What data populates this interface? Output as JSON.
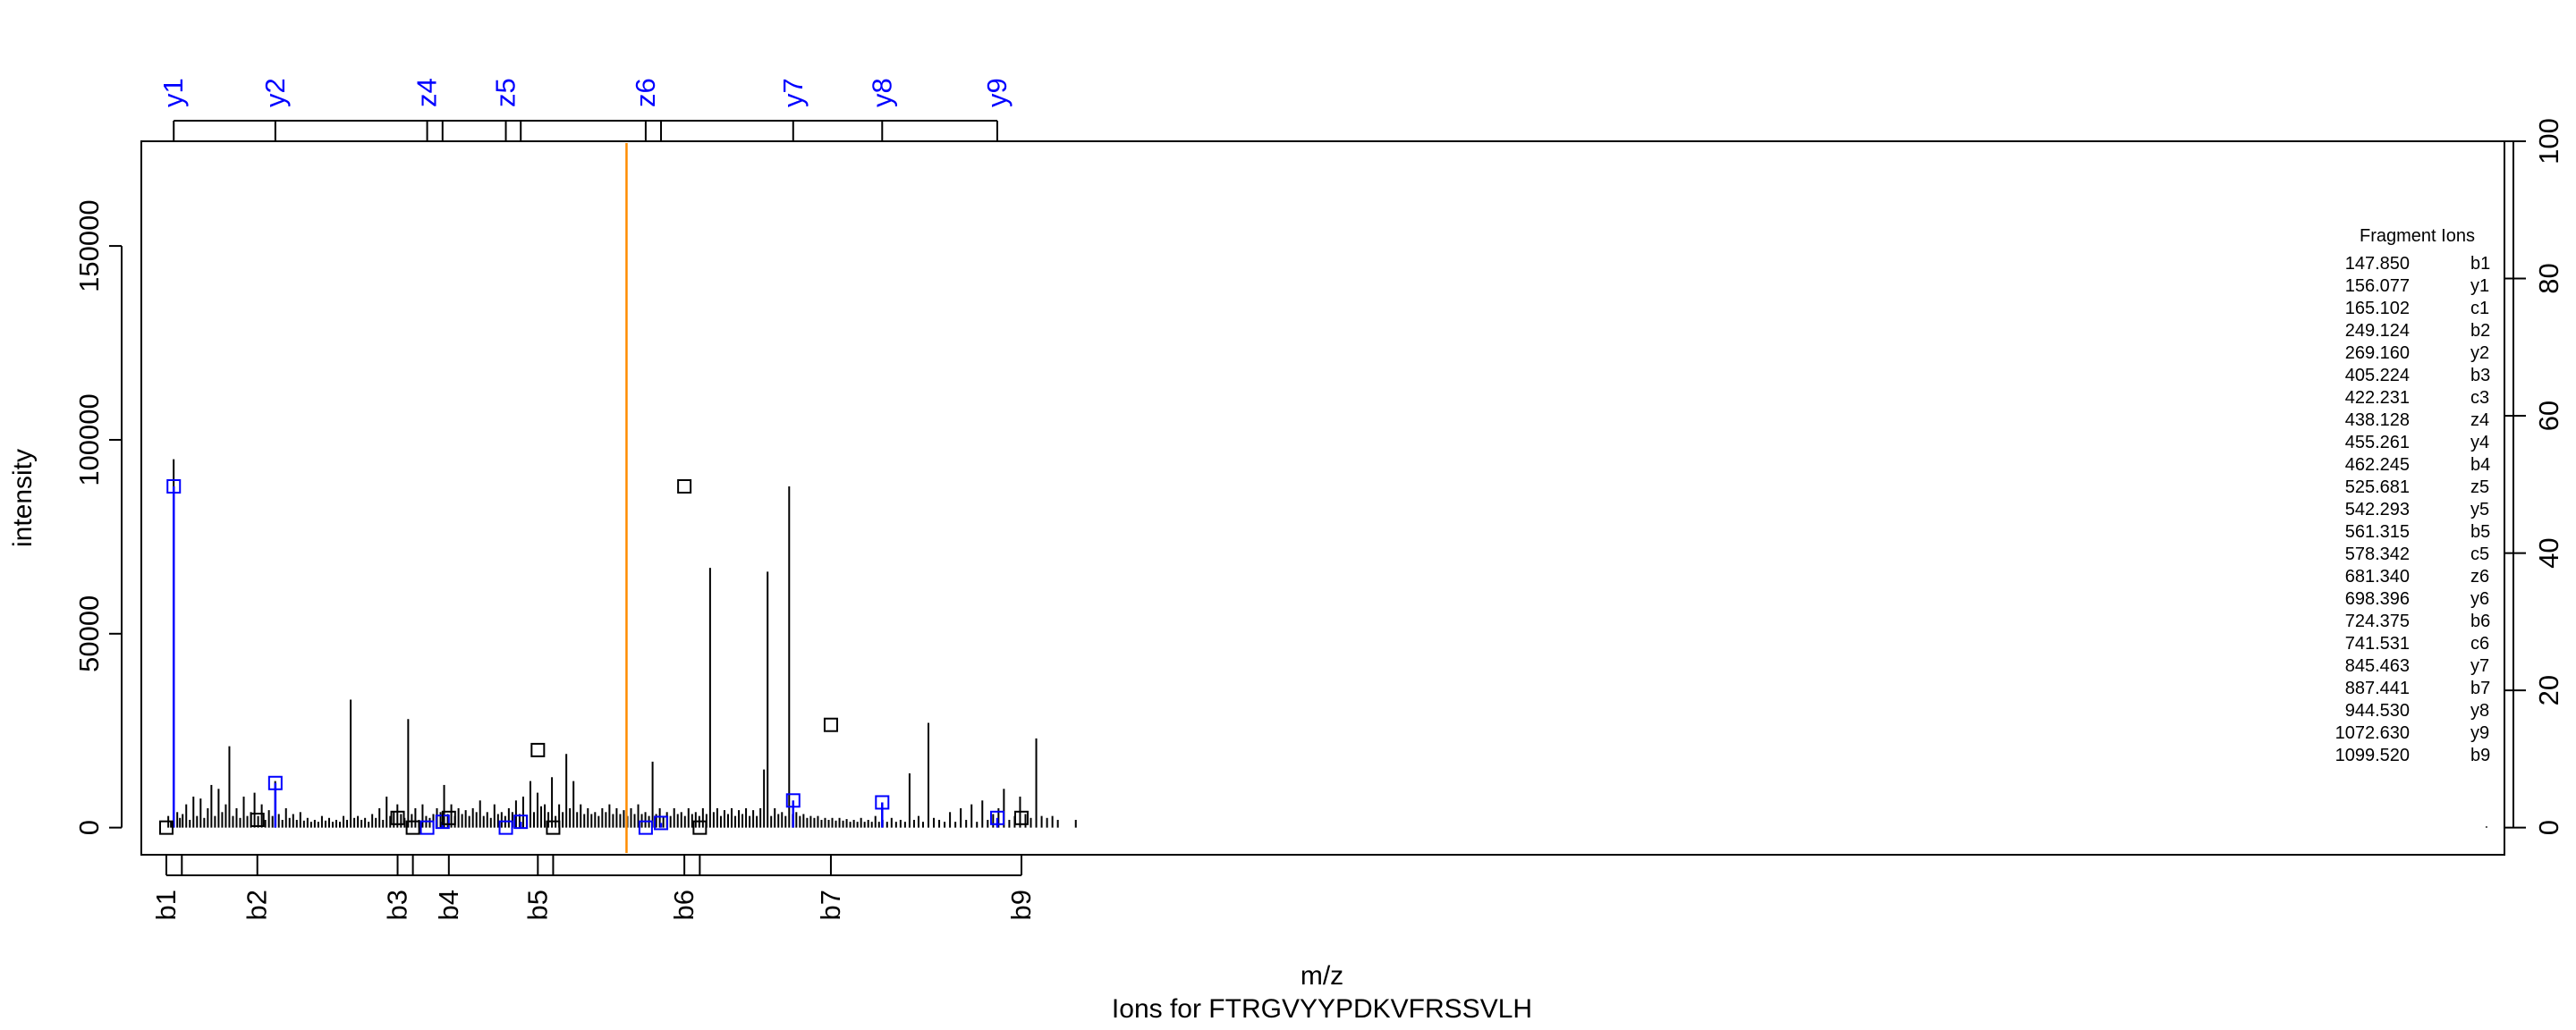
{
  "chart_data": {
    "type": "spectrum",
    "subtitle": "Ions for FTRGVYYPDKVFRSSVLH",
    "xlabel": "m/z",
    "ylabel": "intensity",
    "xlim": [
      120,
      2750
    ],
    "ylim": [
      -7000,
      177000
    ],
    "y_ticks": [
      0,
      50000,
      100000,
      150000
    ],
    "y_right_ticks": [
      0,
      20,
      40,
      60,
      80,
      100
    ],
    "y_right_scale_max": 177000,
    "highlight_line_mz": 660,
    "highlight_color": "#ff8c00",
    "ion_color_matched": "#0000ff",
    "ion_color_other": "#000000",
    "top_ion_ticks": [
      {
        "label": "y1",
        "mz": 156.077,
        "labeled": true
      },
      {
        "label": "y2",
        "mz": 269.16,
        "labeled": true
      },
      {
        "label": "z4",
        "mz": 438.128,
        "labeled": true
      },
      {
        "label": "",
        "mz": 455.261,
        "labeled": false
      },
      {
        "label": "z5",
        "mz": 525.681,
        "labeled": true
      },
      {
        "label": "",
        "mz": 542.293,
        "labeled": false
      },
      {
        "label": "z6",
        "mz": 681.34,
        "labeled": true
      },
      {
        "label": "",
        "mz": 698.396,
        "labeled": false
      },
      {
        "label": "y7",
        "mz": 845.463,
        "labeled": true
      },
      {
        "label": "y8",
        "mz": 944.53,
        "labeled": true
      },
      {
        "label": "y9",
        "mz": 1072.63,
        "labeled": true
      }
    ],
    "bottom_ion_ticks": [
      {
        "label": "b1",
        "mz": 147.85,
        "labeled": true
      },
      {
        "label": "",
        "mz": 165.102,
        "labeled": false
      },
      {
        "label": "b2",
        "mz": 249.124,
        "labeled": true
      },
      {
        "label": "b3",
        "mz": 405.224,
        "labeled": true
      },
      {
        "label": "",
        "mz": 422.231,
        "labeled": false
      },
      {
        "label": "b4",
        "mz": 462.245,
        "labeled": true
      },
      {
        "label": "b5",
        "mz": 561.315,
        "labeled": true
      },
      {
        "label": "",
        "mz": 578.342,
        "labeled": false
      },
      {
        "label": "b6",
        "mz": 724.375,
        "labeled": true
      },
      {
        "label": "",
        "mz": 741.531,
        "labeled": false
      },
      {
        "label": "b7",
        "mz": 887.441,
        "labeled": true
      },
      {
        "label": "b9",
        "mz": 1099.52,
        "labeled": true
      }
    ],
    "peaks": [
      [
        150,
        3000
      ],
      [
        153,
        1500
      ],
      [
        156,
        95000
      ],
      [
        160,
        4000
      ],
      [
        163,
        2500
      ],
      [
        166,
        3500
      ],
      [
        170,
        6000
      ],
      [
        174,
        2000
      ],
      [
        178,
        8000
      ],
      [
        182,
        3000
      ],
      [
        186,
        7500
      ],
      [
        190,
        2500
      ],
      [
        194,
        5000
      ],
      [
        198,
        11000
      ],
      [
        202,
        3000
      ],
      [
        206,
        10000
      ],
      [
        210,
        4000
      ],
      [
        214,
        6000
      ],
      [
        218,
        21000
      ],
      [
        222,
        3000
      ],
      [
        226,
        5000
      ],
      [
        230,
        2500
      ],
      [
        234,
        8000
      ],
      [
        238,
        3000
      ],
      [
        242,
        4000
      ],
      [
        246,
        9000
      ],
      [
        250,
        3000
      ],
      [
        254,
        6000
      ],
      [
        258,
        2000
      ],
      [
        262,
        4500
      ],
      [
        266,
        3000
      ],
      [
        269,
        12000
      ],
      [
        273,
        3500
      ],
      [
        277,
        2000
      ],
      [
        281,
        5000
      ],
      [
        285,
        2500
      ],
      [
        289,
        3500
      ],
      [
        293,
        2000
      ],
      [
        297,
        4000
      ],
      [
        301,
        1800
      ],
      [
        305,
        2500
      ],
      [
        309,
        1500
      ],
      [
        313,
        2000
      ],
      [
        317,
        1500
      ],
      [
        321,
        3000
      ],
      [
        325,
        1800
      ],
      [
        329,
        2500
      ],
      [
        333,
        1500
      ],
      [
        337,
        2000
      ],
      [
        341,
        1500
      ],
      [
        345,
        3000
      ],
      [
        349,
        2000
      ],
      [
        353,
        33000
      ],
      [
        357,
        2500
      ],
      [
        361,
        3000
      ],
      [
        365,
        2000
      ],
      [
        369,
        2500
      ],
      [
        373,
        1500
      ],
      [
        377,
        3500
      ],
      [
        381,
        2500
      ],
      [
        385,
        5000
      ],
      [
        389,
        2000
      ],
      [
        393,
        8000
      ],
      [
        397,
        3000
      ],
      [
        401,
        4000
      ],
      [
        405,
        6000
      ],
      [
        409,
        3500
      ],
      [
        413,
        2500
      ],
      [
        417,
        28000
      ],
      [
        421,
        3500
      ],
      [
        425,
        5000
      ],
      [
        429,
        2000
      ],
      [
        433,
        6000
      ],
      [
        437,
        3000
      ],
      [
        441,
        2500
      ],
      [
        445,
        3500
      ],
      [
        449,
        5000
      ],
      [
        453,
        4000
      ],
      [
        457,
        11000
      ],
      [
        461,
        3500
      ],
      [
        465,
        6000
      ],
      [
        469,
        3000
      ],
      [
        473,
        5000
      ],
      [
        477,
        3500
      ],
      [
        481,
        4500
      ],
      [
        485,
        3000
      ],
      [
        489,
        5000
      ],
      [
        493,
        4000
      ],
      [
        497,
        7000
      ],
      [
        501,
        3000
      ],
      [
        505,
        4000
      ],
      [
        509,
        2500
      ],
      [
        513,
        6000
      ],
      [
        517,
        3500
      ],
      [
        521,
        4000
      ],
      [
        525,
        3000
      ],
      [
        529,
        5000
      ],
      [
        533,
        4000
      ],
      [
        537,
        7000
      ],
      [
        541,
        3500
      ],
      [
        545,
        8000
      ],
      [
        549,
        3000
      ],
      [
        553,
        12000
      ],
      [
        557,
        4000
      ],
      [
        561,
        9000
      ],
      [
        565,
        5500
      ],
      [
        569,
        6000
      ],
      [
        573,
        4000
      ],
      [
        577,
        13000
      ],
      [
        581,
        3000
      ],
      [
        585,
        6000
      ],
      [
        589,
        4000
      ],
      [
        593,
        19000
      ],
      [
        597,
        5000
      ],
      [
        601,
        12000
      ],
      [
        605,
        4000
      ],
      [
        609,
        6000
      ],
      [
        613,
        3500
      ],
      [
        617,
        5000
      ],
      [
        621,
        3500
      ],
      [
        625,
        4000
      ],
      [
        629,
        3000
      ],
      [
        633,
        5000
      ],
      [
        637,
        4000
      ],
      [
        641,
        6000
      ],
      [
        645,
        3500
      ],
      [
        649,
        5000
      ],
      [
        653,
        3500
      ],
      [
        657,
        4500
      ],
      [
        661,
        3000
      ],
      [
        665,
        5000
      ],
      [
        669,
        3500
      ],
      [
        673,
        6000
      ],
      [
        677,
        3500
      ],
      [
        681,
        4000
      ],
      [
        685,
        3000
      ],
      [
        689,
        17000
      ],
      [
        693,
        3500
      ],
      [
        697,
        5000
      ],
      [
        701,
        3000
      ],
      [
        705,
        4000
      ],
      [
        709,
        3000
      ],
      [
        713,
        5000
      ],
      [
        717,
        3500
      ],
      [
        721,
        4000
      ],
      [
        725,
        3000
      ],
      [
        729,
        5000
      ],
      [
        733,
        3500
      ],
      [
        737,
        4000
      ],
      [
        741,
        3000
      ],
      [
        745,
        5000
      ],
      [
        749,
        3500
      ],
      [
        753,
        67000
      ],
      [
        757,
        4000
      ],
      [
        761,
        5000
      ],
      [
        765,
        3000
      ],
      [
        769,
        4500
      ],
      [
        773,
        3500
      ],
      [
        777,
        5000
      ],
      [
        781,
        3000
      ],
      [
        785,
        4500
      ],
      [
        789,
        3500
      ],
      [
        793,
        5000
      ],
      [
        797,
        3000
      ],
      [
        801,
        4500
      ],
      [
        805,
        3000
      ],
      [
        809,
        5000
      ],
      [
        813,
        15000
      ],
      [
        817,
        66000
      ],
      [
        821,
        3000
      ],
      [
        825,
        5000
      ],
      [
        829,
        3500
      ],
      [
        833,
        4000
      ],
      [
        837,
        3000
      ],
      [
        841,
        88000
      ],
      [
        845,
        3500
      ],
      [
        849,
        4000
      ],
      [
        853,
        3000
      ],
      [
        857,
        3500
      ],
      [
        861,
        2500
      ],
      [
        865,
        3000
      ],
      [
        869,
        2500
      ],
      [
        873,
        3000
      ],
      [
        877,
        2000
      ],
      [
        881,
        2500
      ],
      [
        885,
        2000
      ],
      [
        889,
        2500
      ],
      [
        893,
        1800
      ],
      [
        897,
        2500
      ],
      [
        901,
        1800
      ],
      [
        905,
        2200
      ],
      [
        909,
        1500
      ],
      [
        913,
        2000
      ],
      [
        917,
        1500
      ],
      [
        921,
        2500
      ],
      [
        925,
        1500
      ],
      [
        929,
        2000
      ],
      [
        933,
        1500
      ],
      [
        937,
        3000
      ],
      [
        941,
        1500
      ],
      [
        945,
        2000
      ],
      [
        950,
        1500
      ],
      [
        955,
        2500
      ],
      [
        960,
        1500
      ],
      [
        965,
        2000
      ],
      [
        970,
        1500
      ],
      [
        975,
        14000
      ],
      [
        980,
        2000
      ],
      [
        985,
        3000
      ],
      [
        990,
        1500
      ],
      [
        996,
        27000
      ],
      [
        1002,
        2500
      ],
      [
        1008,
        2000
      ],
      [
        1014,
        1500
      ],
      [
        1020,
        4000
      ],
      [
        1026,
        1500
      ],
      [
        1032,
        5000
      ],
      [
        1038,
        2000
      ],
      [
        1044,
        6000
      ],
      [
        1050,
        1500
      ],
      [
        1056,
        7000
      ],
      [
        1062,
        2000
      ],
      [
        1068,
        3500
      ],
      [
        1074,
        5000
      ],
      [
        1080,
        10000
      ],
      [
        1086,
        2000
      ],
      [
        1092,
        3000
      ],
      [
        1098,
        8000
      ],
      [
        1104,
        3500
      ],
      [
        1110,
        2500
      ],
      [
        1116,
        23000
      ],
      [
        1122,
        3000
      ],
      [
        1128,
        2500
      ],
      [
        1134,
        3000
      ],
      [
        1140,
        2000
      ],
      [
        1160,
        2000
      ],
      [
        2730,
        300
      ]
    ],
    "matched_markers": [
      {
        "mz": 156.077,
        "intensity": 88000,
        "color": "#0000ff"
      },
      {
        "mz": 269.16,
        "intensity": 11500,
        "color": "#0000ff"
      },
      {
        "mz": 438.128,
        "intensity": 0,
        "color": "#0000ff"
      },
      {
        "mz": 455.261,
        "intensity": 1500,
        "color": "#0000ff"
      },
      {
        "mz": 525.681,
        "intensity": 0,
        "color": "#0000ff"
      },
      {
        "mz": 542.293,
        "intensity": 1500,
        "color": "#0000ff"
      },
      {
        "mz": 681.34,
        "intensity": 0,
        "color": "#0000ff"
      },
      {
        "mz": 698.396,
        "intensity": 1200,
        "color": "#0000ff"
      },
      {
        "mz": 845.463,
        "intensity": 7000,
        "color": "#0000ff"
      },
      {
        "mz": 944.53,
        "intensity": 6500,
        "color": "#0000ff"
      },
      {
        "mz": 1072.63,
        "intensity": 2500,
        "color": "#0000ff"
      },
      {
        "mz": 147.85,
        "intensity": 0,
        "color": "#000000"
      },
      {
        "mz": 249.124,
        "intensity": 2000,
        "color": "#000000"
      },
      {
        "mz": 405.224,
        "intensity": 2500,
        "color": "#000000"
      },
      {
        "mz": 422.231,
        "intensity": 0,
        "color": "#000000"
      },
      {
        "mz": 462.245,
        "intensity": 2500,
        "color": "#000000"
      },
      {
        "mz": 561.315,
        "intensity": 20000,
        "color": "#000000"
      },
      {
        "mz": 578.342,
        "intensity": 0,
        "color": "#000000"
      },
      {
        "mz": 724.375,
        "intensity": 88000,
        "color": "#000000"
      },
      {
        "mz": 741.531,
        "intensity": 0,
        "color": "#000000"
      },
      {
        "mz": 887.441,
        "intensity": 26500,
        "color": "#000000"
      },
      {
        "mz": 1099.52,
        "intensity": 2500,
        "color": "#000000"
      }
    ],
    "legend": {
      "title": "Fragment Ions",
      "placement": "top-right",
      "entries": [
        {
          "mz": "147.850",
          "ion": "b1"
        },
        {
          "mz": "156.077",
          "ion": "y1"
        },
        {
          "mz": "165.102",
          "ion": "c1"
        },
        {
          "mz": "249.124",
          "ion": "b2"
        },
        {
          "mz": "269.160",
          "ion": "y2"
        },
        {
          "mz": "405.224",
          "ion": "b3"
        },
        {
          "mz": "422.231",
          "ion": "c3"
        },
        {
          "mz": "438.128",
          "ion": "z4"
        },
        {
          "mz": "455.261",
          "ion": "y4"
        },
        {
          "mz": "462.245",
          "ion": "b4"
        },
        {
          "mz": "525.681",
          "ion": "z5"
        },
        {
          "mz": "542.293",
          "ion": "y5"
        },
        {
          "mz": "561.315",
          "ion": "b5"
        },
        {
          "mz": "578.342",
          "ion": "c5"
        },
        {
          "mz": "681.340",
          "ion": "z6"
        },
        {
          "mz": "698.396",
          "ion": "y6"
        },
        {
          "mz": "724.375",
          "ion": "b6"
        },
        {
          "mz": "741.531",
          "ion": "c6"
        },
        {
          "mz": "845.463",
          "ion": "y7"
        },
        {
          "mz": "887.441",
          "ion": "b7"
        },
        {
          "mz": "944.530",
          "ion": "y8"
        },
        {
          "mz": "1072.630",
          "ion": "y9"
        },
        {
          "mz": "1099.520",
          "ion": "b9"
        }
      ]
    }
  }
}
